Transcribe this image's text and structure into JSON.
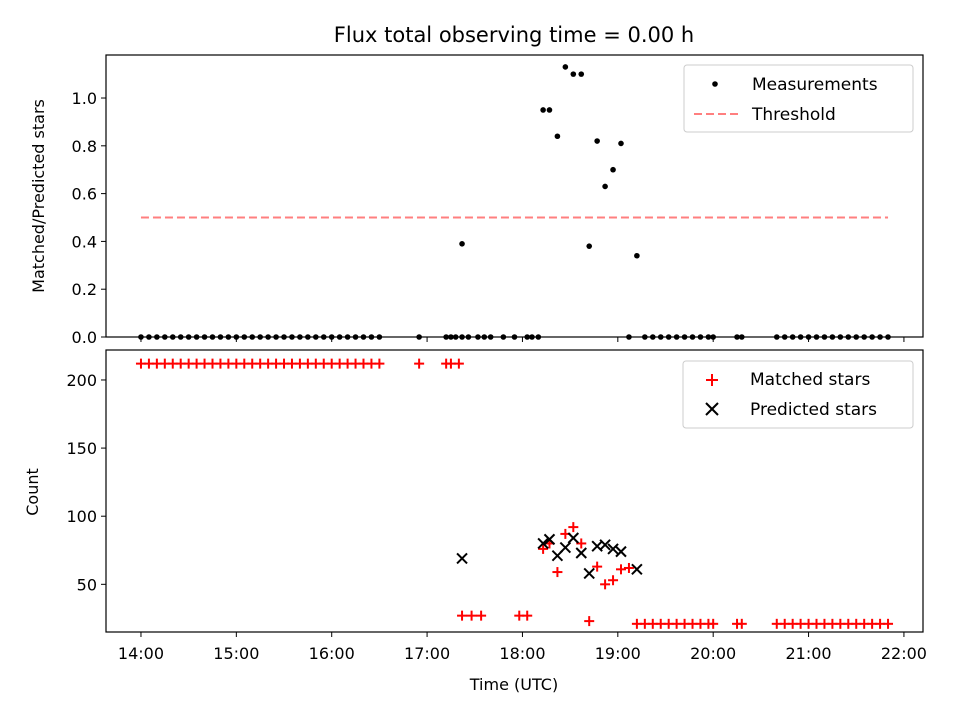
{
  "chart_data": [
    {
      "type": "scatter",
      "title": "Flux total observing time = 0.00 h",
      "ylabel": "Matched/Predicted stars",
      "xlabel": "",
      "xlim": [
        "13:38",
        "22:12"
      ],
      "ylim": [
        0,
        1.18
      ],
      "yticks": [
        0.0,
        0.2,
        0.4,
        0.6,
        0.8,
        1.0
      ],
      "ytick_labels": [
        "0.0",
        "0.2",
        "0.4",
        "0.6",
        "0.8",
        "1.0"
      ],
      "legend": {
        "placement": "top-right",
        "entries": [
          "Measurements",
          "Threshold"
        ]
      },
      "series": [
        {
          "name": "Measurements",
          "marker": "dot",
          "color": "#000000",
          "points": [
            [
              "14:00",
              0
            ],
            [
              "14:05",
              0
            ],
            [
              "14:10",
              0
            ],
            [
              "14:15",
              0
            ],
            [
              "14:20",
              0
            ],
            [
              "14:25",
              0
            ],
            [
              "14:30",
              0
            ],
            [
              "14:35",
              0
            ],
            [
              "14:40",
              0
            ],
            [
              "14:45",
              0
            ],
            [
              "14:50",
              0
            ],
            [
              "14:55",
              0
            ],
            [
              "15:00",
              0
            ],
            [
              "15:05",
              0
            ],
            [
              "15:10",
              0
            ],
            [
              "15:15",
              0
            ],
            [
              "15:20",
              0
            ],
            [
              "15:25",
              0
            ],
            [
              "15:30",
              0
            ],
            [
              "15:35",
              0
            ],
            [
              "15:40",
              0
            ],
            [
              "15:45",
              0
            ],
            [
              "15:50",
              0
            ],
            [
              "15:55",
              0
            ],
            [
              "16:00",
              0
            ],
            [
              "16:05",
              0
            ],
            [
              "16:10",
              0
            ],
            [
              "16:15",
              0
            ],
            [
              "16:20",
              0
            ],
            [
              "16:25",
              0
            ],
            [
              "16:30",
              0
            ],
            [
              "16:55",
              0
            ],
            [
              "17:12",
              0
            ],
            [
              "17:15",
              0
            ],
            [
              "17:18",
              0
            ],
            [
              "17:22",
              0
            ],
            [
              "17:26",
              0
            ],
            [
              "17:32",
              0
            ],
            [
              "17:36",
              0
            ],
            [
              "17:40",
              0
            ],
            [
              "17:48",
              0
            ],
            [
              "17:55",
              0
            ],
            [
              "18:03",
              0
            ],
            [
              "18:06",
              0
            ],
            [
              "18:10",
              0
            ],
            [
              "17:22",
              0.39
            ],
            [
              "18:13",
              0.95
            ],
            [
              "18:17",
              0.95
            ],
            [
              "18:22",
              0.84
            ],
            [
              "18:27",
              1.13
            ],
            [
              "18:32",
              1.1
            ],
            [
              "18:37",
              1.1
            ],
            [
              "18:42",
              0.38
            ],
            [
              "18:47",
              0.82
            ],
            [
              "18:52",
              0.63
            ],
            [
              "18:57",
              0.7
            ],
            [
              "19:02",
              0.81
            ],
            [
              "19:12",
              0.34
            ],
            [
              "19:07",
              0
            ],
            [
              "19:17",
              0
            ],
            [
              "19:22",
              0
            ],
            [
              "19:27",
              0
            ],
            [
              "19:32",
              0
            ],
            [
              "19:37",
              0
            ],
            [
              "19:42",
              0
            ],
            [
              "19:47",
              0
            ],
            [
              "19:52",
              0
            ],
            [
              "19:57",
              0
            ],
            [
              "20:00",
              0
            ],
            [
              "20:15",
              0
            ],
            [
              "20:18",
              0
            ],
            [
              "20:40",
              0
            ],
            [
              "20:45",
              0
            ],
            [
              "20:50",
              0
            ],
            [
              "20:55",
              0
            ],
            [
              "21:00",
              0
            ],
            [
              "21:05",
              0
            ],
            [
              "21:10",
              0
            ],
            [
              "21:15",
              0
            ],
            [
              "21:20",
              0
            ],
            [
              "21:25",
              0
            ],
            [
              "21:30",
              0
            ],
            [
              "21:35",
              0
            ],
            [
              "21:40",
              0
            ],
            [
              "21:45",
              0
            ],
            [
              "21:50",
              0
            ]
          ]
        },
        {
          "name": "Threshold",
          "style": "dashed-line",
          "color": "#ff7f7f",
          "points": [
            [
              "14:00",
              0.5
            ],
            [
              "21:50",
              0.5
            ]
          ]
        }
      ]
    },
    {
      "type": "scatter",
      "title": "",
      "ylabel": "Count",
      "xlabel": "Time (UTC)",
      "xlim": [
        "13:38",
        "22:12"
      ],
      "ylim": [
        15,
        222
      ],
      "yticks": [
        50,
        100,
        150,
        200
      ],
      "ytick_labels": [
        "50",
        "100",
        "150",
        "200"
      ],
      "xticks": [
        "14:00",
        "15:00",
        "16:00",
        "17:00",
        "18:00",
        "19:00",
        "20:00",
        "21:00",
        "22:00"
      ],
      "xtick_labels": [
        "14:00",
        "15:00",
        "16:00",
        "17:00",
        "18:00",
        "19:00",
        "20:00",
        "21:00",
        "22:00"
      ],
      "legend": {
        "placement": "top-right",
        "entries": [
          "Matched stars",
          "Predicted stars"
        ]
      },
      "series": [
        {
          "name": "Matched stars",
          "marker": "plus",
          "color": "#ff0000",
          "points": [
            [
              "14:00",
              212
            ],
            [
              "14:05",
              212
            ],
            [
              "14:10",
              212
            ],
            [
              "14:15",
              212
            ],
            [
              "14:20",
              212
            ],
            [
              "14:25",
              212
            ],
            [
              "14:30",
              212
            ],
            [
              "14:35",
              212
            ],
            [
              "14:40",
              212
            ],
            [
              "14:45",
              212
            ],
            [
              "14:50",
              212
            ],
            [
              "14:55",
              212
            ],
            [
              "15:00",
              212
            ],
            [
              "15:05",
              212
            ],
            [
              "15:10",
              212
            ],
            [
              "15:15",
              212
            ],
            [
              "15:20",
              212
            ],
            [
              "15:25",
              212
            ],
            [
              "15:30",
              212
            ],
            [
              "15:35",
              212
            ],
            [
              "15:40",
              212
            ],
            [
              "15:45",
              212
            ],
            [
              "15:50",
              212
            ],
            [
              "15:55",
              212
            ],
            [
              "16:00",
              212
            ],
            [
              "16:05",
              212
            ],
            [
              "16:10",
              212
            ],
            [
              "16:15",
              212
            ],
            [
              "16:20",
              212
            ],
            [
              "16:25",
              212
            ],
            [
              "16:30",
              212
            ],
            [
              "16:55",
              212
            ],
            [
              "17:12",
              212
            ],
            [
              "17:15",
              212
            ],
            [
              "17:20",
              212
            ],
            [
              "17:22",
              27
            ],
            [
              "17:28",
              27
            ],
            [
              "17:34",
              27
            ],
            [
              "17:58",
              27
            ],
            [
              "18:03",
              27
            ],
            [
              "18:13",
              76
            ],
            [
              "18:17",
              80
            ],
            [
              "18:22",
              59
            ],
            [
              "18:27",
              87
            ],
            [
              "18:32",
              92
            ],
            [
              "18:37",
              80
            ],
            [
              "18:42",
              23
            ],
            [
              "18:47",
              63
            ],
            [
              "18:52",
              50
            ],
            [
              "18:57",
              53
            ],
            [
              "19:02",
              61
            ],
            [
              "19:07",
              62
            ],
            [
              "19:12",
              21
            ],
            [
              "19:17",
              21
            ],
            [
              "19:22",
              21
            ],
            [
              "19:27",
              21
            ],
            [
              "19:32",
              21
            ],
            [
              "19:37",
              21
            ],
            [
              "19:42",
              21
            ],
            [
              "19:47",
              21
            ],
            [
              "19:52",
              21
            ],
            [
              "19:57",
              21
            ],
            [
              "20:00",
              21
            ],
            [
              "20:15",
              21
            ],
            [
              "20:18",
              21
            ],
            [
              "20:40",
              21
            ],
            [
              "20:45",
              21
            ],
            [
              "20:50",
              21
            ],
            [
              "20:55",
              21
            ],
            [
              "21:00",
              21
            ],
            [
              "21:05",
              21
            ],
            [
              "21:10",
              21
            ],
            [
              "21:15",
              21
            ],
            [
              "21:20",
              21
            ],
            [
              "21:25",
              21
            ],
            [
              "21:30",
              21
            ],
            [
              "21:35",
              21
            ],
            [
              "21:40",
              21
            ],
            [
              "21:45",
              21
            ],
            [
              "21:50",
              21
            ]
          ]
        },
        {
          "name": "Predicted stars",
          "marker": "x",
          "color": "#000000",
          "points": [
            [
              "17:22",
              69
            ],
            [
              "18:13",
              80
            ],
            [
              "18:17",
              83
            ],
            [
              "18:22",
              71
            ],
            [
              "18:27",
              77
            ],
            [
              "18:32",
              84
            ],
            [
              "18:37",
              73
            ],
            [
              "18:42",
              58
            ],
            [
              "18:47",
              78
            ],
            [
              "18:52",
              79
            ],
            [
              "18:57",
              76
            ],
            [
              "19:02",
              74
            ],
            [
              "19:12",
              61
            ]
          ]
        }
      ]
    }
  ]
}
